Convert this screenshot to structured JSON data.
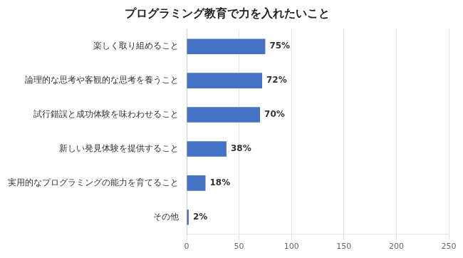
{
  "chart_data": {
    "type": "bar",
    "orientation": "horizontal",
    "title": "プログラミング教育で力を入れたいこと",
    "categories": [
      "楽しく取り組めること",
      "論理的な思考や客観的な思考を養うこと",
      "試行錯誤と成功体験を味わわせること",
      "新しい発見体験を提供すること",
      "実用的なプログラミングの能力を育てること",
      "その他"
    ],
    "values": [
      75,
      72,
      70,
      38,
      18,
      2
    ],
    "value_labels": [
      "75%",
      "72%",
      "70%",
      "38%",
      "18%",
      "2%"
    ],
    "data_labels": true,
    "color": "#4472C4",
    "xlim": [
      0,
      250
    ],
    "xticks": [
      0,
      50,
      100,
      150,
      200,
      250
    ],
    "grid": true
  }
}
